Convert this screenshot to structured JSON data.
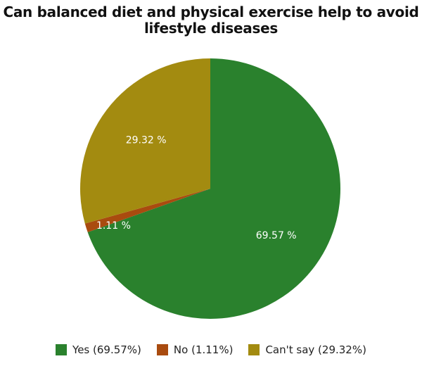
{
  "chart_data": {
    "type": "pie",
    "title": "Can balanced diet and physical exercise help to avoid lifestyle diseases",
    "categories": [
      "Yes",
      "No",
      "Can't say"
    ],
    "values": [
      69.57,
      1.11,
      29.32
    ],
    "slice_labels": [
      "69.57 %",
      "1.11 %",
      "29.32 %"
    ],
    "legend": [
      "Yes (69.57%)",
      "No (1.11%)",
      "Can't say (29.32%)"
    ],
    "colors": [
      "#2a812d",
      "#a94b0f",
      "#a38b10"
    ],
    "legend_placement": "bottom"
  }
}
